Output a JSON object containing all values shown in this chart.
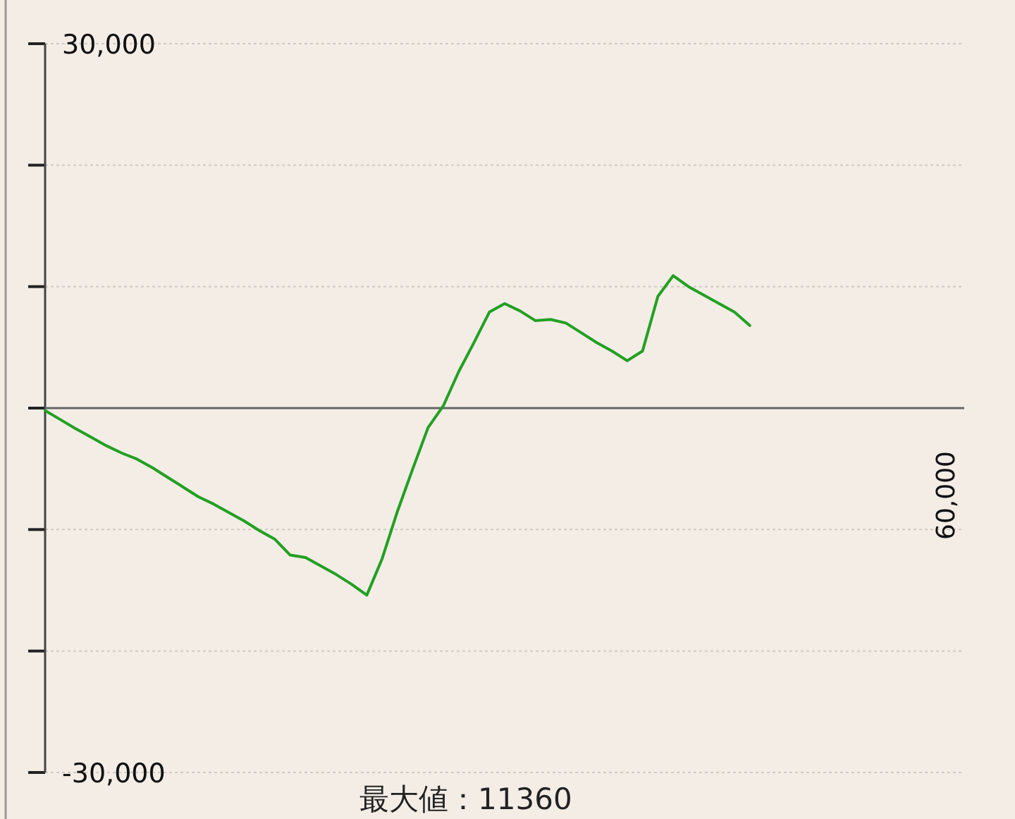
{
  "chart_data": {
    "type": "line",
    "categories": [
      null,
      null,
      null,
      null,
      null,
      null,
      null,
      null,
      null,
      null,
      null,
      null,
      null,
      null,
      null,
      null,
      null,
      null,
      null,
      null,
      null,
      null,
      null,
      null,
      null,
      null,
      null,
      null,
      null,
      null,
      null,
      null,
      null,
      null,
      null,
      null,
      null,
      null,
      null,
      null,
      null,
      null,
      null,
      null,
      null,
      null,
      null,
      null,
      null,
      null,
      null,
      null,
      null,
      null,
      null,
      null,
      null,
      null,
      null,
      null,
      null
    ],
    "series": [
      {
        "color": "#22a022",
        "values": [
          -200,
          -950,
          -1700,
          -2400,
          -3100,
          -3700,
          -4200,
          -4900,
          -5700,
          -6500,
          -7300,
          -7900,
          -8600,
          -9300,
          -10100,
          -10800,
          -12100,
          -12300,
          -13000,
          -13700,
          -14500,
          -15400,
          -12400,
          -8500,
          -5000,
          -1600,
          200,
          3000,
          5400,
          7900,
          8600,
          8000,
          7200,
          7300,
          7000,
          6200,
          5400,
          4700,
          3900,
          4700,
          9200,
          10900,
          10000,
          9300,
          8600,
          7900,
          6800,
          null,
          null,
          null,
          null,
          null,
          null,
          null,
          null,
          null,
          null,
          null,
          null,
          null,
          null
        ]
      }
    ],
    "ylim": [
      -30000,
      30000
    ],
    "yticks": [
      {
        "value": -30000,
        "label": "-30,000"
      },
      {
        "value": -20000,
        "label": null
      },
      {
        "value": -10000,
        "label": null
      },
      {
        "value": 0,
        "label": null
      },
      {
        "value": 10000,
        "label": null
      },
      {
        "value": 20000,
        "label": null
      },
      {
        "value": 30000,
        "label": "30,000"
      }
    ],
    "ref_lines": [
      {
        "axis": "y",
        "value": 0,
        "color": "#666666"
      }
    ],
    "grid": "y",
    "marker": "none",
    "line_style": "solid",
    "annotations": [
      "60,000",
      "最大値：11360"
    ]
  }
}
